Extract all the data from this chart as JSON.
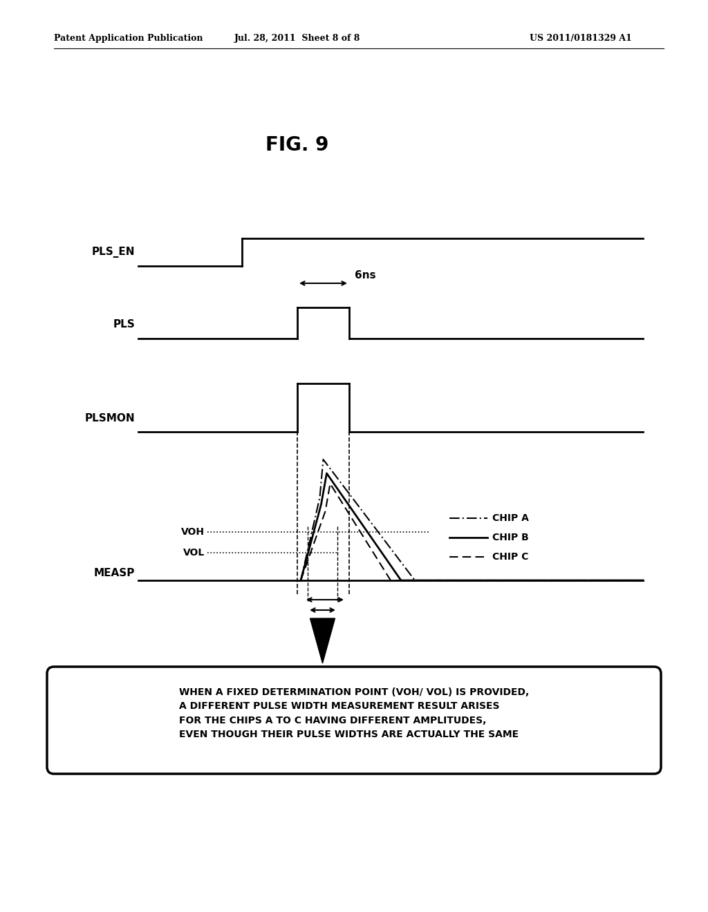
{
  "title": "FIG. 9",
  "header_left": "Patent Application Publication",
  "header_mid": "Jul. 28, 2011  Sheet 8 of 8",
  "header_right": "US 2011/0181329 A1",
  "bg_color": "#ffffff",
  "annotation_6ns": "6ns",
  "voh_label": "VOH",
  "vol_label": "VOL",
  "chip_a_label": "CHIP A",
  "chip_b_label": "CHIP B",
  "chip_c_label": "CHIP C",
  "box_text": "WHEN A FIXED DETERMINATION POINT (VOH/ VOL) IS PROVIDED,\nA DIFFERENT PULSE WIDTH MEASUREMENT RESULT ARISES\nFOR THE CHIPS A TO C HAVING DIFFERENT AMPLITUDES,\nEVEN THOUGH THEIR PULSE WIDTHS ARE ACTUALLY THE SAME"
}
